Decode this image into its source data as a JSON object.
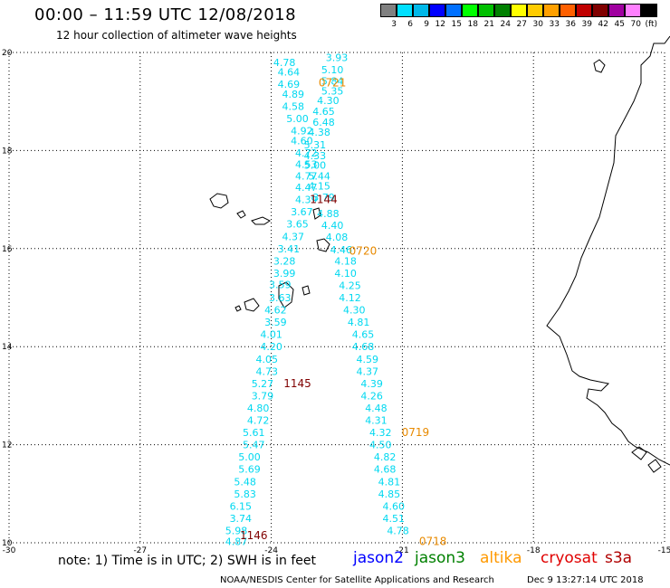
{
  "header": {
    "title": "00:00 – 11:59 UTC 12/08/2018",
    "subtitle": "12 hour collection of altimeter wave heights"
  },
  "legend": {
    "colors": [
      "#808080",
      "#00e0ff",
      "#00b8e8",
      "#0000ff",
      "#0070ff",
      "#00ff00",
      "#00c000",
      "#008000",
      "#ffff00",
      "#ffcc00",
      "#ffa000",
      "#ff6000",
      "#c00000",
      "#800000",
      "#a000a0",
      "#ff80ff",
      "#000000"
    ],
    "labels": [
      "3",
      "6",
      "9",
      "12",
      "15",
      "18",
      "21",
      "24",
      "27",
      "30",
      "33",
      "36",
      "39",
      "42",
      "45",
      "70",
      "(ft)"
    ]
  },
  "chart_data": {
    "type": "scatter",
    "x_ticks": [
      "-30",
      "-27",
      "-24",
      "-21",
      "-18",
      "-15"
    ],
    "y_ticks": [
      "20",
      "18",
      "16",
      "14",
      "12",
      "10"
    ],
    "xlim": [
      -30,
      -15
    ],
    "ylim": [
      10,
      20
    ],
    "grid": true,
    "series": [
      {
        "color": "#00d8f0",
        "points": [
          {
            "x": -23.7,
            "y": 19.8,
            "label": "4.78"
          },
          {
            "x": -23.6,
            "y": 19.6,
            "label": "4.64"
          },
          {
            "x": -23.6,
            "y": 19.35,
            "label": "4.69"
          },
          {
            "x": -23.5,
            "y": 19.15,
            "label": "4.89"
          },
          {
            "x": -23.5,
            "y": 18.9,
            "label": "4.58"
          },
          {
            "x": -23.4,
            "y": 18.65,
            "label": "5.00"
          },
          {
            "x": -23.3,
            "y": 18.4,
            "label": "4.92"
          },
          {
            "x": -23.3,
            "y": 18.2,
            "label": "4.60"
          },
          {
            "x": -23.2,
            "y": 17.95,
            "label": "4.72"
          },
          {
            "x": -23.2,
            "y": 17.72,
            "label": "4.53"
          },
          {
            "x": -23.2,
            "y": 17.48,
            "label": "4.77"
          },
          {
            "x": -23.2,
            "y": 17.25,
            "label": "4.47"
          },
          {
            "x": -23.2,
            "y": 17.0,
            "label": "4.39"
          },
          {
            "x": -23.3,
            "y": 16.75,
            "label": "3.67"
          },
          {
            "x": -23.4,
            "y": 16.5,
            "label": "3.65"
          },
          {
            "x": -23.5,
            "y": 16.25,
            "label": "4.37"
          },
          {
            "x": -23.6,
            "y": 16.0,
            "label": "3.41"
          },
          {
            "x": -23.7,
            "y": 15.75,
            "label": "3.28"
          },
          {
            "x": -23.7,
            "y": 15.5,
            "label": "3.99"
          },
          {
            "x": -23.8,
            "y": 15.27,
            "label": "3.59"
          },
          {
            "x": -23.8,
            "y": 15.0,
            "label": "3.63"
          },
          {
            "x": -23.9,
            "y": 14.75,
            "label": "4.62"
          },
          {
            "x": -23.9,
            "y": 14.5,
            "label": "3.59"
          },
          {
            "x": -24.0,
            "y": 14.25,
            "label": "4.01"
          },
          {
            "x": -24.0,
            "y": 14.0,
            "label": "4.20"
          },
          {
            "x": -24.1,
            "y": 13.75,
            "label": "4.05"
          },
          {
            "x": -24.1,
            "y": 13.5,
            "label": "4.73"
          },
          {
            "x": -24.2,
            "y": 13.25,
            "label": "5.27"
          },
          {
            "x": -24.2,
            "y": 13.0,
            "label": "3.79"
          },
          {
            "x": -24.3,
            "y": 12.75,
            "label": "4.80"
          },
          {
            "x": -24.3,
            "y": 12.5,
            "label": "4.72"
          },
          {
            "x": -24.4,
            "y": 12.25,
            "label": "5.61"
          },
          {
            "x": -24.4,
            "y": 12.0,
            "label": "5.47"
          },
          {
            "x": -24.5,
            "y": 11.75,
            "label": "5.00"
          },
          {
            "x": -24.5,
            "y": 11.5,
            "label": "5.69"
          },
          {
            "x": -24.6,
            "y": 11.25,
            "label": "5.48"
          },
          {
            "x": -24.6,
            "y": 11.0,
            "label": "5.83"
          },
          {
            "x": -24.7,
            "y": 10.75,
            "label": "6.15"
          },
          {
            "x": -24.7,
            "y": 10.5,
            "label": "3.74"
          },
          {
            "x": -24.8,
            "y": 10.25,
            "label": "5.98"
          },
          {
            "x": -24.8,
            "y": 10.03,
            "label": "4.87"
          },
          {
            "x": -22.5,
            "y": 19.9,
            "label": "3.93"
          },
          {
            "x": -22.6,
            "y": 19.65,
            "label": "5.10"
          },
          {
            "x": -22.6,
            "y": 19.42,
            "label": "5.84"
          },
          {
            "x": -22.6,
            "y": 19.22,
            "label": "5.35"
          },
          {
            "x": -22.7,
            "y": 19.02,
            "label": "4.30"
          },
          {
            "x": -22.8,
            "y": 18.8,
            "label": "4.65"
          },
          {
            "x": -22.8,
            "y": 18.58,
            "label": "6.48"
          },
          {
            "x": -22.9,
            "y": 18.38,
            "label": "4.38"
          },
          {
            "x": -23.0,
            "y": 18.12,
            "label": "5.31"
          },
          {
            "x": -23.0,
            "y": 17.9,
            "label": "4.33"
          },
          {
            "x": -23.0,
            "y": 17.7,
            "label": "5.00"
          },
          {
            "x": -22.9,
            "y": 17.48,
            "label": "5.44"
          },
          {
            "x": -22.9,
            "y": 17.28,
            "label": "4.15"
          },
          {
            "x": -22.8,
            "y": 17.05,
            "label": "3.79"
          },
          {
            "x": -22.7,
            "y": 16.72,
            "label": "4.88"
          },
          {
            "x": -22.6,
            "y": 16.48,
            "label": "4.40"
          },
          {
            "x": -22.5,
            "y": 16.24,
            "label": "4.08"
          },
          {
            "x": -22.4,
            "y": 15.98,
            "label": "4.46"
          },
          {
            "x": -22.3,
            "y": 15.75,
            "label": "4.18"
          },
          {
            "x": -22.3,
            "y": 15.5,
            "label": "4.10"
          },
          {
            "x": -22.2,
            "y": 15.25,
            "label": "4.25"
          },
          {
            "x": -22.2,
            "y": 15.0,
            "label": "4.12"
          },
          {
            "x": -22.1,
            "y": 14.75,
            "label": "4.30"
          },
          {
            "x": -22.0,
            "y": 14.5,
            "label": "4.81"
          },
          {
            "x": -21.9,
            "y": 14.25,
            "label": "4.65"
          },
          {
            "x": -21.9,
            "y": 14.0,
            "label": "4.68"
          },
          {
            "x": -21.8,
            "y": 13.75,
            "label": "4.59"
          },
          {
            "x": -21.8,
            "y": 13.5,
            "label": "4.37"
          },
          {
            "x": -21.7,
            "y": 13.25,
            "label": "4.39"
          },
          {
            "x": -21.7,
            "y": 13.0,
            "label": "4.26"
          },
          {
            "x": -21.6,
            "y": 12.75,
            "label": "4.48"
          },
          {
            "x": -21.6,
            "y": 12.5,
            "label": "4.31"
          },
          {
            "x": -21.5,
            "y": 12.25,
            "label": "4.32"
          },
          {
            "x": -21.5,
            "y": 12.0,
            "label": "4.50"
          },
          {
            "x": -21.4,
            "y": 11.75,
            "label": "4.82"
          },
          {
            "x": -21.4,
            "y": 11.5,
            "label": "4.68"
          },
          {
            "x": -21.3,
            "y": 11.25,
            "label": "4.81"
          },
          {
            "x": -21.3,
            "y": 11.0,
            "label": "4.85"
          },
          {
            "x": -21.2,
            "y": 10.75,
            "label": "4.60"
          },
          {
            "x": -21.2,
            "y": 10.5,
            "label": "4.51"
          },
          {
            "x": -21.1,
            "y": 10.25,
            "label": "4.78"
          }
        ]
      }
    ],
    "time_labels": [
      {
        "x": -22.6,
        "y": 19.38,
        "text": "0721",
        "color": "#e88a00"
      },
      {
        "x": -22.8,
        "y": 17.0,
        "text": "1144",
        "color": "#800000"
      },
      {
        "x": -21.9,
        "y": 15.95,
        "text": "0720",
        "color": "#e88a00"
      },
      {
        "x": -23.4,
        "y": 13.25,
        "text": "1145",
        "color": "#800000"
      },
      {
        "x": -20.7,
        "y": 12.25,
        "text": "0719",
        "color": "#e88a00"
      },
      {
        "x": -24.4,
        "y": 10.15,
        "text": "1146",
        "color": "#800000"
      },
      {
        "x": -20.3,
        "y": 10.03,
        "text": "0718",
        "color": "#e88a00"
      }
    ]
  },
  "footer": {
    "note": "note: 1) Time is in UTC; 2) SWH is in feet",
    "missions": [
      {
        "name": "jason2",
        "color": "#0000ff"
      },
      {
        "name": "jason3",
        "color": "#008000"
      },
      {
        "name": "altika",
        "color": "#ff9900"
      },
      {
        "name": "cryosat",
        "color": "#e00000"
      },
      {
        "name": "s3a",
        "color": "#b00000"
      }
    ],
    "credit": "NOAA/NESDIS Center for Satellite Applications and Research",
    "timestamp": "Dec  9 13:27:14 UTC 2018"
  }
}
